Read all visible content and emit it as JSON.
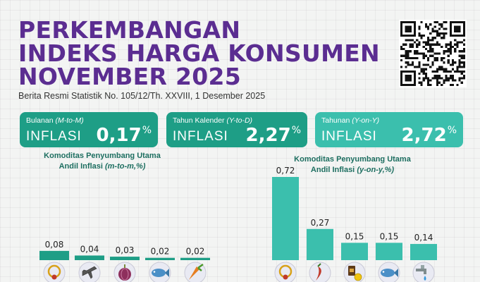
{
  "header": {
    "title_lines": [
      "PERKEMBANGAN",
      "INDEKS HARGA KONSUMEN",
      "NOVEMBER 2025"
    ],
    "subtitle": "Berita Resmi Statistik No. 105/12/Th. XXVIII, 1 Desember 2025"
  },
  "cards": [
    {
      "label": "Bulanan",
      "label_italic": "(M-to-M)",
      "type": "INFLASI",
      "value": "0,17",
      "unit": "%"
    },
    {
      "label": "Tahun Kalender",
      "label_italic": "(Y-to-D)",
      "type": "INFLASI",
      "value": "2,27",
      "unit": "%"
    },
    {
      "label": "Tahunan",
      "label_italic": "(Y-on-Y)",
      "type": "INFLASI",
      "value": "2,72",
      "unit": "%"
    }
  ],
  "chart_data": [
    {
      "type": "bar",
      "title_line1": "Komoditas Penyumbang Utama",
      "title_line2": "Andil Inflasi",
      "title_italic": "(m-to-m,%)",
      "categories_icons": [
        "gold-jewelry-icon",
        "airplane-icon",
        "shallot-icon",
        "fish-icon",
        "carrot-icon"
      ],
      "values": [
        0.08,
        0.04,
        0.03,
        0.02,
        0.02
      ],
      "labels": [
        "0,08",
        "0,04",
        "0,03",
        "0,02",
        "0,02"
      ],
      "color": "#1e9e86"
    },
    {
      "type": "bar",
      "title_line1": "Komoditas Penyumbang Utama",
      "title_line2": "Andil Inflasi",
      "title_italic": "(y-on-y,%)",
      "categories_icons": [
        "gold-jewelry-icon",
        "chili-icon",
        "coffee-icon",
        "fish-icon",
        "water-tap-icon"
      ],
      "values": [
        0.72,
        0.27,
        0.15,
        0.15,
        0.14
      ],
      "labels": [
        "0,72",
        "0,27",
        "0,15",
        "0,15",
        "0,14"
      ],
      "color": "#3bbfad"
    }
  ]
}
